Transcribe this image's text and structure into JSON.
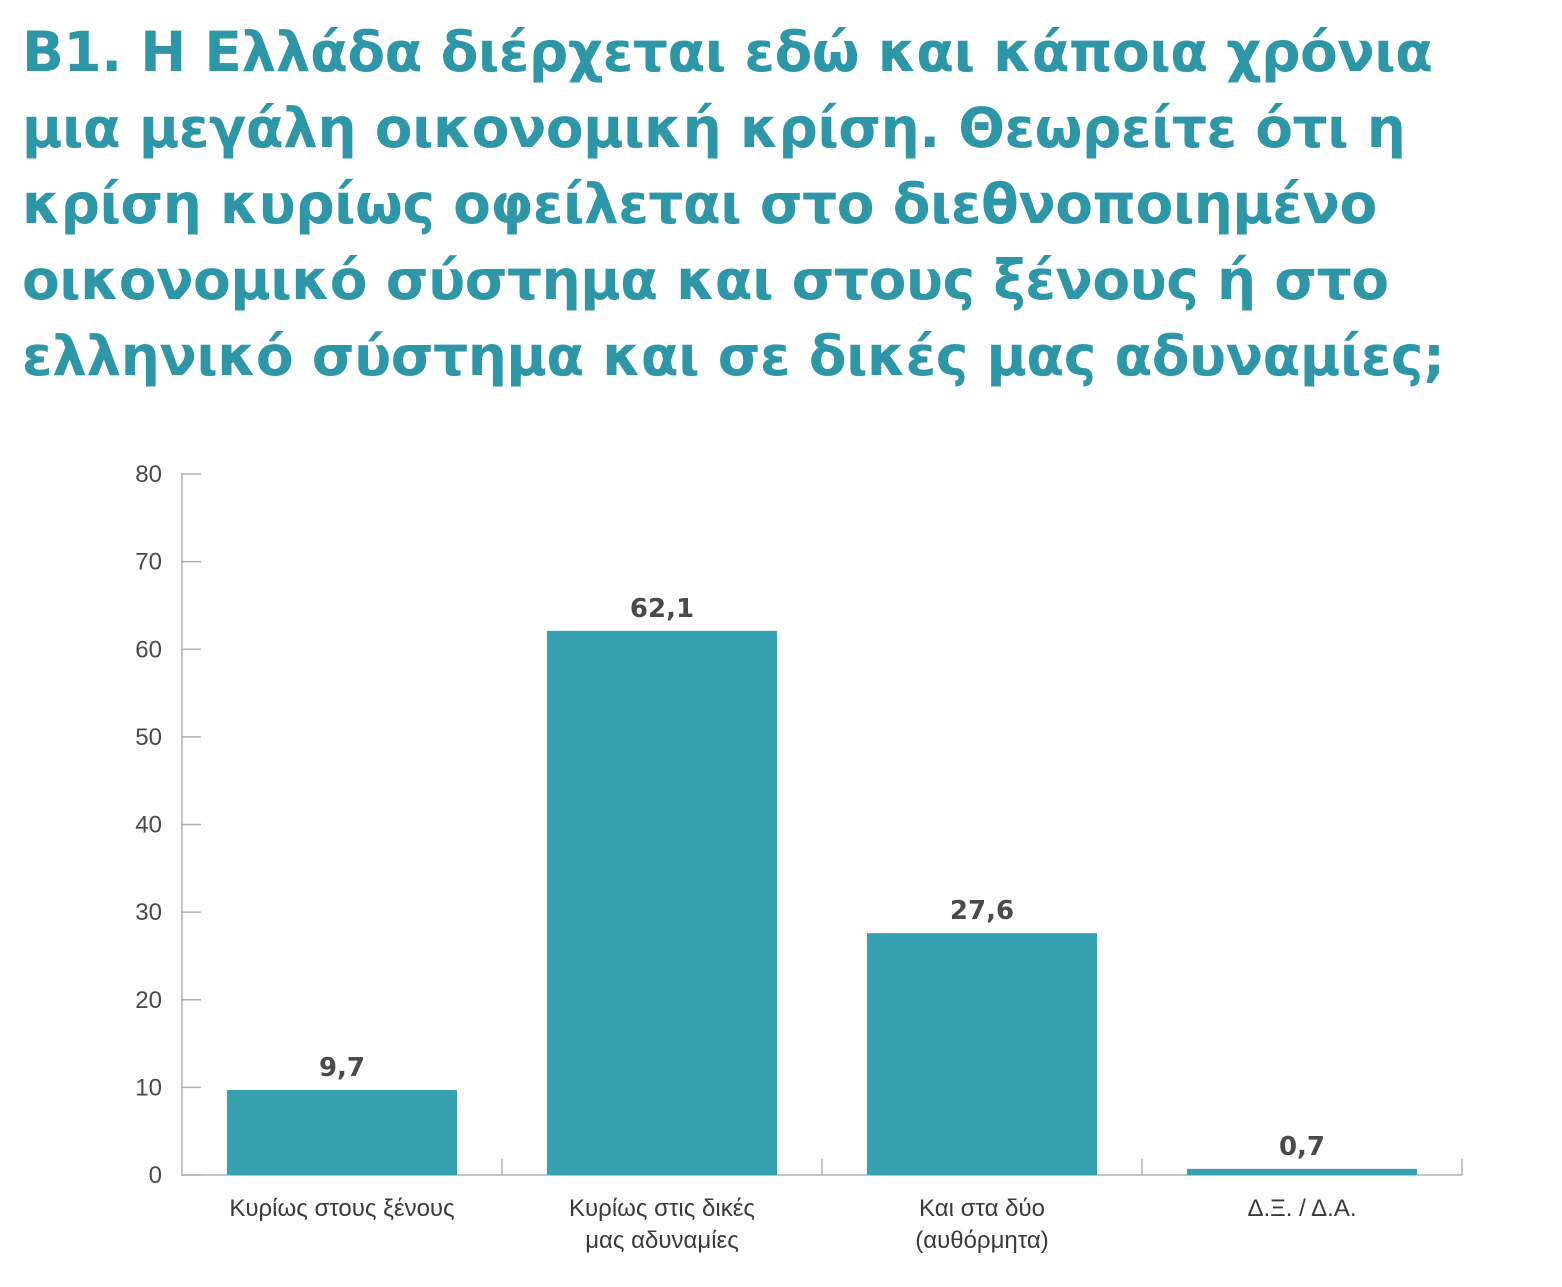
{
  "title_lines": [
    "Β1. Η Ελλάδα διέρχεται εδώ και κάποια χρόνια",
    "μια μεγάλη οικονομική κρίση. Θεωρείτε ότι η",
    "κρίση κυρίως οφείλεται στο διεθνοποιημένο",
    "οικονομικό σύστημα και στους ξένους ή στο",
    "ελληνικό σύστημα και σε δικές μας αδυναμίες;"
  ],
  "colors": {
    "title": "#2e97a7",
    "bar": "#36a1b1",
    "axis": "#b0b0b0",
    "text": "#4a4a4a"
  },
  "chart_data": {
    "type": "bar",
    "categories": [
      [
        "Κυρίως στους ξένους"
      ],
      [
        "Κυρίως στις δικές",
        "μας αδυναμίες"
      ],
      [
        "Και στα δύο",
        "(αυθόρμητα)"
      ],
      [
        "Δ.Ξ. / Δ.Α."
      ]
    ],
    "values": [
      9.7,
      62.1,
      27.6,
      0.7
    ],
    "value_labels": [
      "9,7",
      "62,1",
      "27,6",
      "0,7"
    ],
    "ylim": [
      0,
      80
    ],
    "yticks": [
      0,
      10,
      20,
      30,
      40,
      50,
      60,
      70,
      80
    ],
    "grid": false
  }
}
